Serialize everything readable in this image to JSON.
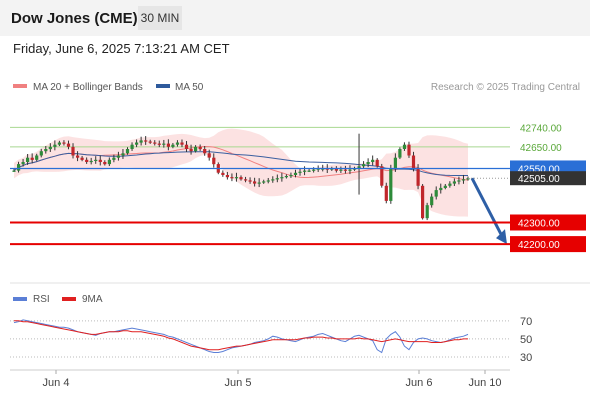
{
  "header": {
    "title": "Dow Jones (CME)",
    "timeframe": "30 MIN",
    "datetime": "Friday, June 6, 2025 7:13:21 AM CET"
  },
  "chart_data": [
    {
      "type": "line",
      "legend": [
        {
          "name": "MA 20 + Bollinger Bands",
          "color": "#f08080"
        },
        {
          "name": "MA 50",
          "color": "#2e5a9c"
        }
      ],
      "credit": "Research © 2025 Trading Central",
      "ylim": [
        42020,
        42890
      ],
      "levels": [
        {
          "label": "42740.00",
          "value": 42740,
          "kind": "resistance"
        },
        {
          "label": "42650.00",
          "value": 42650,
          "kind": "resistance"
        },
        {
          "label": "42550.00",
          "value": 42550,
          "kind": "pivot"
        },
        {
          "label": "42505.00",
          "value": 42505,
          "kind": "last"
        },
        {
          "label": "42300.00",
          "value": 42300,
          "kind": "support"
        },
        {
          "label": "42200.00",
          "value": 42200,
          "kind": "support"
        }
      ],
      "x_ticks": [
        "Jun 4",
        "Jun 5",
        "Jun 6",
        "Jun 10"
      ],
      "close": [
        42540,
        42570,
        42580,
        42600,
        42590,
        42610,
        42630,
        42640,
        42650,
        42660,
        42670,
        42665,
        42650,
        42610,
        42600,
        42590,
        42580,
        42585,
        42590,
        42580,
        42570,
        42590,
        42600,
        42610,
        42620,
        42640,
        42660,
        42670,
        42680,
        42675,
        42670,
        42665,
        42660,
        42665,
        42650,
        42660,
        42670,
        42660,
        42640,
        42630,
        42650,
        42640,
        42620,
        42600,
        42570,
        42530,
        42520,
        42510,
        42505,
        42510,
        42500,
        42495,
        42490,
        42480,
        42485,
        42490,
        42495,
        42500,
        42505,
        42510,
        42515,
        42520,
        42530,
        42535,
        42540,
        42540,
        42545,
        42550,
        42550,
        42545,
        42550,
        42540,
        42545,
        42540,
        42545,
        42550,
        42560,
        42570,
        42580,
        42590,
        42560,
        42470,
        42400,
        42550,
        42600,
        42640,
        42660,
        42610,
        42550,
        42470,
        42320,
        42380,
        42420,
        42450,
        42460,
        42470,
        42480,
        42490,
        42495,
        42500,
        42505
      ],
      "forecast": [
        42505,
        42200
      ]
    },
    {
      "type": "line",
      "legend": [
        {
          "name": "RSI",
          "color": "#5b7fd6"
        },
        {
          "name": "9MA",
          "color": "#e02020"
        }
      ],
      "ylim": [
        20,
        82
      ],
      "y_ticks": [
        70,
        50,
        30
      ],
      "rsi": [
        68,
        69,
        71,
        70,
        69,
        68,
        67,
        66,
        65,
        64,
        63,
        63,
        62,
        60,
        58,
        57,
        56,
        55,
        54,
        56,
        57,
        58,
        58,
        59,
        60,
        61,
        62,
        61,
        60,
        59,
        58,
        57,
        56,
        55,
        53,
        52,
        50,
        48,
        46,
        44,
        42,
        40,
        38,
        36,
        35,
        35,
        36,
        38,
        40,
        41,
        42,
        43,
        44,
        46,
        47,
        48,
        50,
        53,
        52,
        50,
        49,
        48,
        47,
        49,
        51,
        52,
        53,
        55,
        56,
        54,
        52,
        50,
        48,
        47,
        50,
        53,
        54,
        52,
        50,
        48,
        38,
        35,
        50,
        55,
        58,
        52,
        42,
        38,
        46,
        50,
        51,
        50,
        48,
        47,
        46,
        47,
        49,
        51,
        52,
        53,
        55
      ],
      "ma9": [
        70,
        70,
        69,
        69,
        68,
        67,
        66,
        65,
        64,
        63,
        62,
        61,
        60,
        59,
        58,
        57,
        56,
        55,
        55,
        56,
        57,
        58,
        58,
        58,
        59,
        59,
        58,
        58,
        58,
        57,
        56,
        55,
        54,
        53,
        51,
        50,
        48,
        46,
        44,
        42,
        41,
        40,
        39,
        38,
        38,
        38,
        39,
        40,
        41,
        42,
        42,
        43,
        44,
        45,
        46,
        47,
        48,
        49,
        49,
        49,
        49,
        49,
        49,
        50,
        51,
        51,
        52,
        52,
        52,
        51,
        51,
        50,
        50,
        50,
        50,
        50,
        51,
        50,
        50,
        49,
        48,
        47,
        48,
        49,
        50,
        49,
        48,
        47,
        47,
        47,
        47,
        47,
        46,
        46,
        46,
        47,
        48,
        49,
        49,
        50,
        50
      ]
    }
  ]
}
